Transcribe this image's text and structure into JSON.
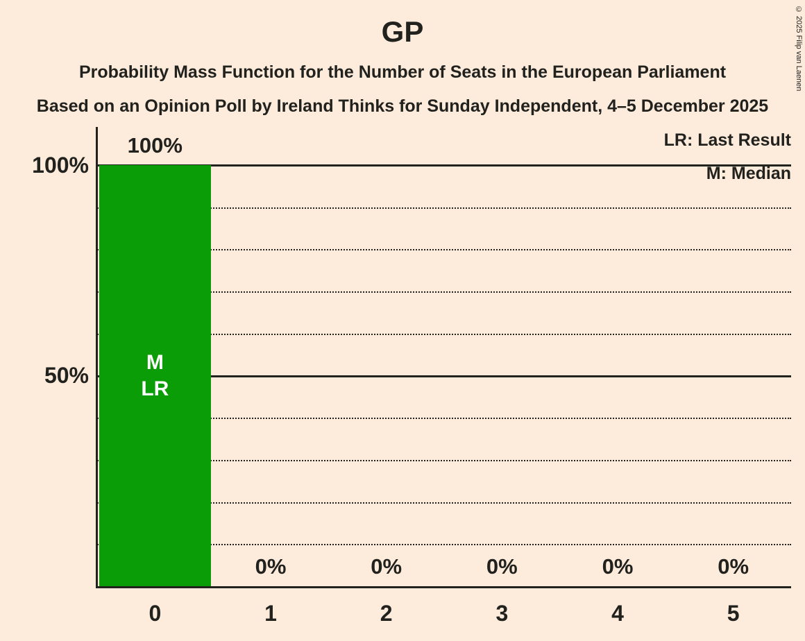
{
  "page": {
    "background": "#fdebdc",
    "text_color": "#21211d"
  },
  "title": "GP",
  "subtitles": [
    "Probability Mass Function for the Number of Seats in the European Parliament",
    "Based on an Opinion Poll by Ireland Thinks for Sunday Independent, 4–5 December 2025"
  ],
  "legend": {
    "lr": "LR: Last Result",
    "m": "M: Median"
  },
  "copyright": "© 2025 Filip van Laenen",
  "y_axis_ticks": [
    {
      "label": "100%",
      "value": 100
    },
    {
      "label": "50%",
      "value": 50
    }
  ],
  "chart_data": {
    "type": "bar",
    "title": "GP",
    "categories": [
      "0",
      "1",
      "2",
      "3",
      "4",
      "5"
    ],
    "values": [
      100,
      0,
      0,
      0,
      0,
      0
    ],
    "value_labels": [
      "100%",
      "0%",
      "0%",
      "0%",
      "0%",
      "0%"
    ],
    "ylim": [
      0,
      100
    ],
    "gridline_interval": 10,
    "solid_gridlines": [
      50,
      100
    ],
    "dotted_gridlines": [
      10,
      20,
      30,
      40,
      60,
      70,
      80,
      90
    ],
    "bar_color": "#0b9d07",
    "bar_label_color": "#ffffff",
    "annotations": [
      {
        "category_index": 0,
        "lines": [
          "M",
          "LR"
        ]
      }
    ],
    "legend_position": "top-right",
    "grid": "horizontal"
  }
}
